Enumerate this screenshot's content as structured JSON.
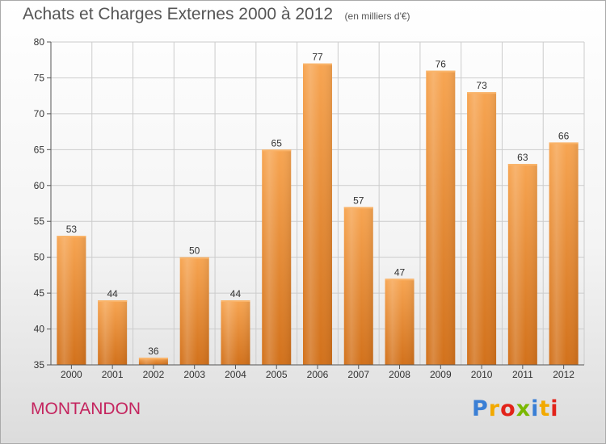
{
  "title": "Achats et Charges Externes 2000 à 2012",
  "unit": "(en milliers d'€)",
  "commune": "MONTANDON",
  "logo": {
    "letters": [
      {
        "char": "P",
        "color": "#3a7fd5"
      },
      {
        "char": "r",
        "color": "#f2a900"
      },
      {
        "char": "o",
        "color": "#e2231a"
      },
      {
        "char": "x",
        "color": "#7ab800"
      },
      {
        "char": "i",
        "color": "#3a7fd5"
      },
      {
        "char": "t",
        "color": "#f2a900"
      },
      {
        "char": "i",
        "color": "#e2231a"
      }
    ]
  },
  "colors": {
    "bar_top": "#f7a552",
    "bar_bottom": "#d2711b",
    "grid": "#cccccc",
    "axis_text": "#333333"
  },
  "chart_data": {
    "type": "bar",
    "title": "Achats et Charges Externes 2000 à 2012",
    "categories": [
      "2000",
      "2001",
      "2002",
      "2003",
      "2004",
      "2005",
      "2006",
      "2007",
      "2008",
      "2009",
      "2010",
      "2011",
      "2012"
    ],
    "values": [
      53,
      44,
      36,
      50,
      44,
      65,
      77,
      57,
      47,
      76,
      73,
      63,
      66
    ],
    "ylim": [
      35,
      80
    ],
    "yticks": [
      35,
      40,
      45,
      50,
      55,
      60,
      65,
      70,
      75,
      80
    ],
    "grid": true,
    "data_labels": true
  }
}
